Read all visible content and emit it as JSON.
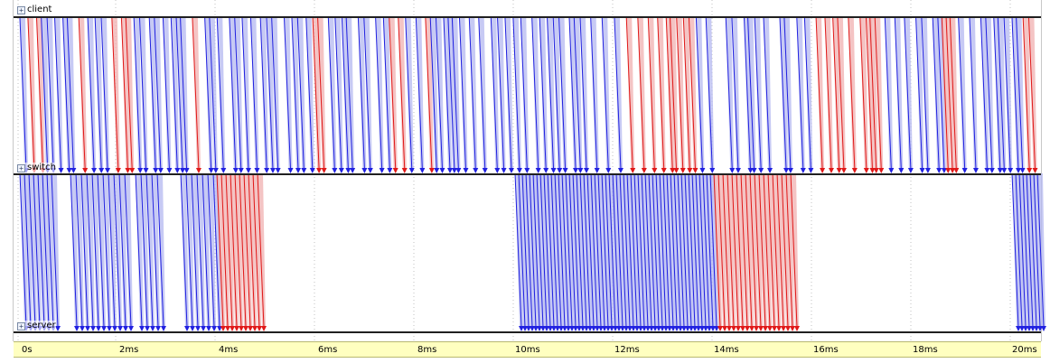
{
  "tracks": {
    "client": "client",
    "switch": "switch",
    "server": "server"
  },
  "timeline": {
    "labels": [
      "0s",
      "2ms",
      "4ms",
      "6ms",
      "8ms",
      "10ms",
      "12ms",
      "14ms",
      "16ms",
      "18ms",
      "20ms"
    ]
  },
  "colors": {
    "data_message": "#2020e0",
    "ack_message": "#e01818",
    "data_fill": "#b4b8f0",
    "ack_fill": "#f0b0b0",
    "timeline_bg": "#ffffc0"
  }
}
